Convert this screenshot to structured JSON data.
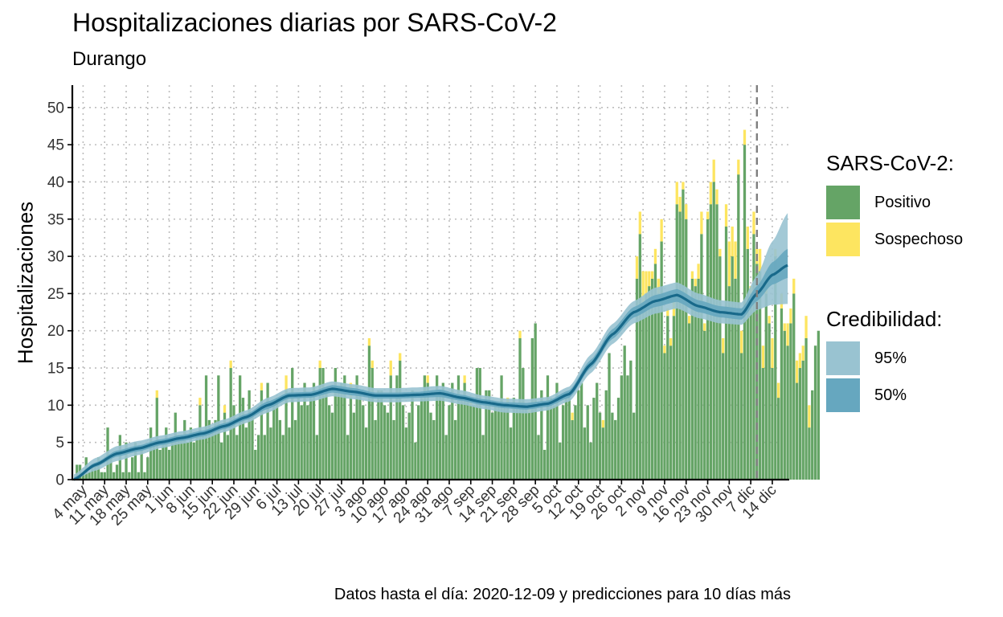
{
  "title": "Hospitalizaciones diarias por SARS-CoV-2",
  "subtitle": "Durango",
  "caption": "Datos hasta el día: 2020-12-09 y predicciones para 10 días más",
  "colors": {
    "positivo": "#65a466",
    "sospechoso": "#fde560",
    "band95": "#99c3d1",
    "band50": "#66a7bf",
    "line": "#18698a",
    "grid": "#bdbdbd",
    "cutoff": "#7f7f7f"
  },
  "legend": {
    "sars": {
      "title": "SARS-CoV-2:",
      "items": [
        {
          "label": "Positivo",
          "color": "#65a466"
        },
        {
          "label": "Sospechoso",
          "color": "#fde560"
        }
      ]
    },
    "cred": {
      "title": "Credibilidad:",
      "items": [
        {
          "label": "95%",
          "color": "#99c3d1"
        },
        {
          "label": "50%",
          "color": "#66a7bf"
        }
      ]
    }
  },
  "chart_data": {
    "type": "bar",
    "title": "Hospitalizaciones diarias por SARS-CoV-2",
    "subtitle": "Durango",
    "ylabel": "Hospitalizaciones",
    "xlabel": "",
    "ylim": [
      0,
      53
    ],
    "yticks": [
      0,
      5,
      10,
      15,
      20,
      25,
      30,
      35,
      40,
      45,
      50
    ],
    "x_start": "2020-05-01",
    "x_end": "2020-12-19",
    "data_end": "2020-12-09",
    "x_ticks": [
      "4 may",
      "11 may",
      "18 may",
      "25 may",
      "1 jun",
      "8 jun",
      "15 jun",
      "22 jun",
      "29 jun",
      "6 jul",
      "13 jul",
      "20 jul",
      "27 jul",
      "3 ago",
      "10 ago",
      "17 ago",
      "24 ago",
      "31 ago",
      "7 sep",
      "14 sep",
      "21 sep",
      "28 sep",
      "5 oct",
      "12 oct",
      "19 oct",
      "26 oct",
      "2 nov",
      "9 nov",
      "16 nov",
      "23 nov",
      "30 nov",
      "7 dic",
      "14 dic"
    ],
    "x_tick_dates": [
      "2020-05-04",
      "2020-05-11",
      "2020-05-18",
      "2020-05-25",
      "2020-06-01",
      "2020-06-08",
      "2020-06-15",
      "2020-06-22",
      "2020-06-29",
      "2020-07-06",
      "2020-07-13",
      "2020-07-20",
      "2020-07-27",
      "2020-08-03",
      "2020-08-10",
      "2020-08-17",
      "2020-08-24",
      "2020-08-31",
      "2020-09-07",
      "2020-09-14",
      "2020-09-21",
      "2020-09-28",
      "2020-10-05",
      "2020-10-12",
      "2020-10-19",
      "2020-10-26",
      "2020-11-02",
      "2020-11-09",
      "2020-11-16",
      "2020-11-23",
      "2020-11-30",
      "2020-12-07",
      "2020-12-14"
    ],
    "bars": {
      "start_date": "2020-05-01",
      "positivo": [
        0,
        2,
        2,
        1,
        3,
        1,
        2,
        2,
        3,
        1,
        1,
        7,
        3,
        1,
        2,
        6,
        1,
        5,
        1,
        3,
        5,
        1,
        4,
        1,
        3,
        7,
        5,
        11,
        4,
        5,
        7,
        4,
        5,
        9,
        6,
        6,
        8,
        5,
        7,
        5,
        6,
        10,
        6,
        14,
        8,
        7,
        8,
        14,
        5,
        9,
        6,
        15,
        10,
        6,
        14,
        11,
        7,
        12,
        9,
        4,
        6,
        12,
        6,
        13,
        7,
        10,
        11,
        8,
        6,
        12,
        7,
        15,
        8,
        11,
        10,
        13,
        10,
        11,
        13,
        6,
        15,
        15,
        12,
        10,
        9,
        15,
        12,
        13,
        14,
        6,
        11,
        9,
        14,
        12,
        10,
        7,
        18,
        15,
        8,
        12,
        12,
        10,
        9,
        14,
        8,
        14,
        16,
        10,
        7,
        9,
        12,
        5,
        10,
        11,
        14,
        13,
        9,
        8,
        14,
        12,
        13,
        6,
        10,
        13,
        8,
        14,
        11,
        13,
        11,
        10,
        10,
        15,
        15,
        6,
        12,
        12,
        9,
        10,
        10,
        14,
        10,
        10,
        7,
        11,
        10,
        19,
        15,
        10,
        9,
        19,
        21,
        6,
        12,
        4,
        14,
        11,
        10,
        13,
        5,
        10,
        11,
        11,
        8,
        10,
        12,
        13,
        7,
        10,
        5,
        11,
        13,
        9,
        7,
        12,
        17,
        9,
        8,
        11,
        14,
        18,
        14,
        16,
        9,
        27,
        33,
        23,
        25,
        26,
        27,
        29,
        25,
        32,
        17,
        22,
        18,
        22,
        37,
        36,
        39,
        35,
        21,
        27,
        26,
        27,
        33,
        20,
        35,
        37,
        40,
        37,
        30,
        17,
        34,
        26,
        30,
        27,
        41,
        17,
        45,
        31,
        25,
        33,
        29,
        28,
        15,
        25,
        21,
        15,
        30,
        11,
        23,
        20,
        18,
        21,
        25,
        13,
        15,
        16,
        19,
        7,
        12,
        18,
        20
      ],
      "sospechoso": [
        0,
        0,
        0,
        0,
        0,
        0,
        0,
        0,
        0,
        0,
        0,
        0,
        0,
        0,
        0,
        0,
        0,
        0,
        0,
        0,
        0,
        0,
        0,
        0,
        0,
        0,
        0,
        1,
        0,
        0,
        0,
        0,
        0,
        0,
        0,
        0,
        0,
        0,
        0,
        0,
        0,
        1,
        0,
        0,
        0,
        0,
        0,
        0,
        0,
        1,
        0,
        1,
        0,
        0,
        0,
        0,
        0,
        0,
        0,
        0,
        0,
        1,
        0,
        0,
        0,
        0,
        0,
        0,
        0,
        2,
        0,
        0,
        0,
        0,
        0,
        0,
        0,
        0,
        0,
        0,
        1,
        0,
        0,
        0,
        0,
        0,
        0,
        0,
        0,
        0,
        2,
        0,
        0,
        0,
        0,
        0,
        1,
        1,
        0,
        0,
        0,
        0,
        0,
        2,
        0,
        0,
        1,
        0,
        0,
        0,
        0,
        0,
        0,
        0,
        0,
        1,
        0,
        0,
        0,
        0,
        0,
        0,
        0,
        0,
        0,
        0,
        0,
        1,
        0,
        1,
        0,
        0,
        0,
        0,
        0,
        0,
        0,
        0,
        0,
        0,
        0,
        1,
        0,
        0,
        0,
        1,
        0,
        0,
        1,
        0,
        0,
        0,
        0,
        0,
        0,
        0,
        0,
        0,
        0,
        0,
        0,
        0,
        1,
        0,
        0,
        0,
        0,
        0,
        0,
        0,
        0,
        0,
        1,
        0,
        0,
        0,
        0,
        0,
        0,
        0,
        0,
        0,
        0,
        3,
        3,
        5,
        3,
        2,
        1,
        2,
        2,
        3,
        1,
        1,
        1,
        3,
        3,
        2,
        1,
        2,
        1,
        1,
        1,
        2,
        3,
        1,
        1,
        3,
        3,
        2,
        1,
        2,
        3,
        6,
        4,
        5,
        2,
        3,
        2,
        3,
        1,
        3,
        2,
        3,
        3,
        3,
        1,
        4,
        1,
        2,
        2,
        1,
        3,
        2,
        2,
        3,
        2,
        2,
        3,
        3,
        0
      ]
    },
    "series": [
      {
        "name": "Positivo",
        "role": "bar"
      },
      {
        "name": "Sospechoso",
        "role": "bar"
      }
    ],
    "ribbons": [
      {
        "name": "95%"
      },
      {
        "name": "50%"
      }
    ],
    "trend_knots": {
      "dates": [
        "2020-05-01",
        "2020-05-08",
        "2020-05-15",
        "2020-05-22",
        "2020-05-29",
        "2020-06-05",
        "2020-06-12",
        "2020-06-19",
        "2020-06-26",
        "2020-07-03",
        "2020-07-10",
        "2020-07-17",
        "2020-07-24",
        "2020-07-31",
        "2020-08-07",
        "2020-08-14",
        "2020-08-21",
        "2020-08-28",
        "2020-09-04",
        "2020-09-11",
        "2020-09-18",
        "2020-09-25",
        "2020-10-02",
        "2020-10-09",
        "2020-10-16",
        "2020-10-23",
        "2020-10-30",
        "2020-11-06",
        "2020-11-13",
        "2020-11-20",
        "2020-11-27",
        "2020-12-04",
        "2020-12-09",
        "2020-12-14",
        "2020-12-19"
      ],
      "median": [
        0,
        2,
        3.5,
        4.2,
        5,
        5.6,
        6.2,
        7.2,
        8.4,
        10,
        11.3,
        11.4,
        12.2,
        11.8,
        11.3,
        11.3,
        11.4,
        11.6,
        11,
        10.4,
        10,
        9.8,
        10.2,
        11.5,
        15.5,
        19.5,
        22.5,
        24,
        24.8,
        23.3,
        22.5,
        22.2,
        25,
        27.5,
        28.8
      ],
      "lo95": [
        0,
        1.2,
        2.5,
        3.3,
        4.2,
        4.8,
        5.4,
        6.4,
        7.6,
        9,
        10.4,
        10.5,
        11.2,
        10.8,
        10.4,
        10.4,
        10.5,
        10.6,
        10.1,
        9.5,
        9,
        8.9,
        9.3,
        10.5,
        14.3,
        18.2,
        21,
        22.3,
        23,
        21.7,
        21,
        20.8,
        22.8,
        23.5,
        23.6
      ],
      "hi95": [
        0.7,
        2.9,
        4.5,
        5.2,
        5.9,
        6.5,
        7.1,
        8.1,
        9.3,
        11,
        12.3,
        12.4,
        13.2,
        12.8,
        12.3,
        12.3,
        12.4,
        12.6,
        12,
        11.3,
        10.9,
        10.8,
        11.1,
        12.5,
        16.8,
        20.9,
        24,
        25.8,
        26.5,
        25,
        24.1,
        23.8,
        27.4,
        32,
        35.8
      ],
      "lo50": [
        0,
        1.7,
        3.1,
        3.8,
        4.6,
        5.2,
        5.8,
        6.8,
        8,
        9.5,
        10.9,
        11,
        11.7,
        11.3,
        10.9,
        10.9,
        11,
        11.1,
        10.6,
        10,
        9.6,
        9.4,
        9.8,
        11,
        15,
        18.9,
        21.8,
        23.2,
        23.9,
        22.5,
        21.8,
        21.5,
        24,
        26.2,
        27.1
      ],
      "hi50": [
        0.3,
        2.3,
        3.9,
        4.6,
        5.4,
        6,
        6.6,
        7.6,
        8.8,
        10.5,
        11.7,
        11.8,
        12.7,
        12.3,
        11.7,
        11.7,
        11.8,
        12.1,
        11.4,
        10.8,
        10.4,
        10.3,
        10.6,
        12,
        16.1,
        20.2,
        23.2,
        24.8,
        25.6,
        24.1,
        23.3,
        23,
        26,
        29.2,
        31
      ]
    },
    "grid": true,
    "legend_position": "right"
  }
}
